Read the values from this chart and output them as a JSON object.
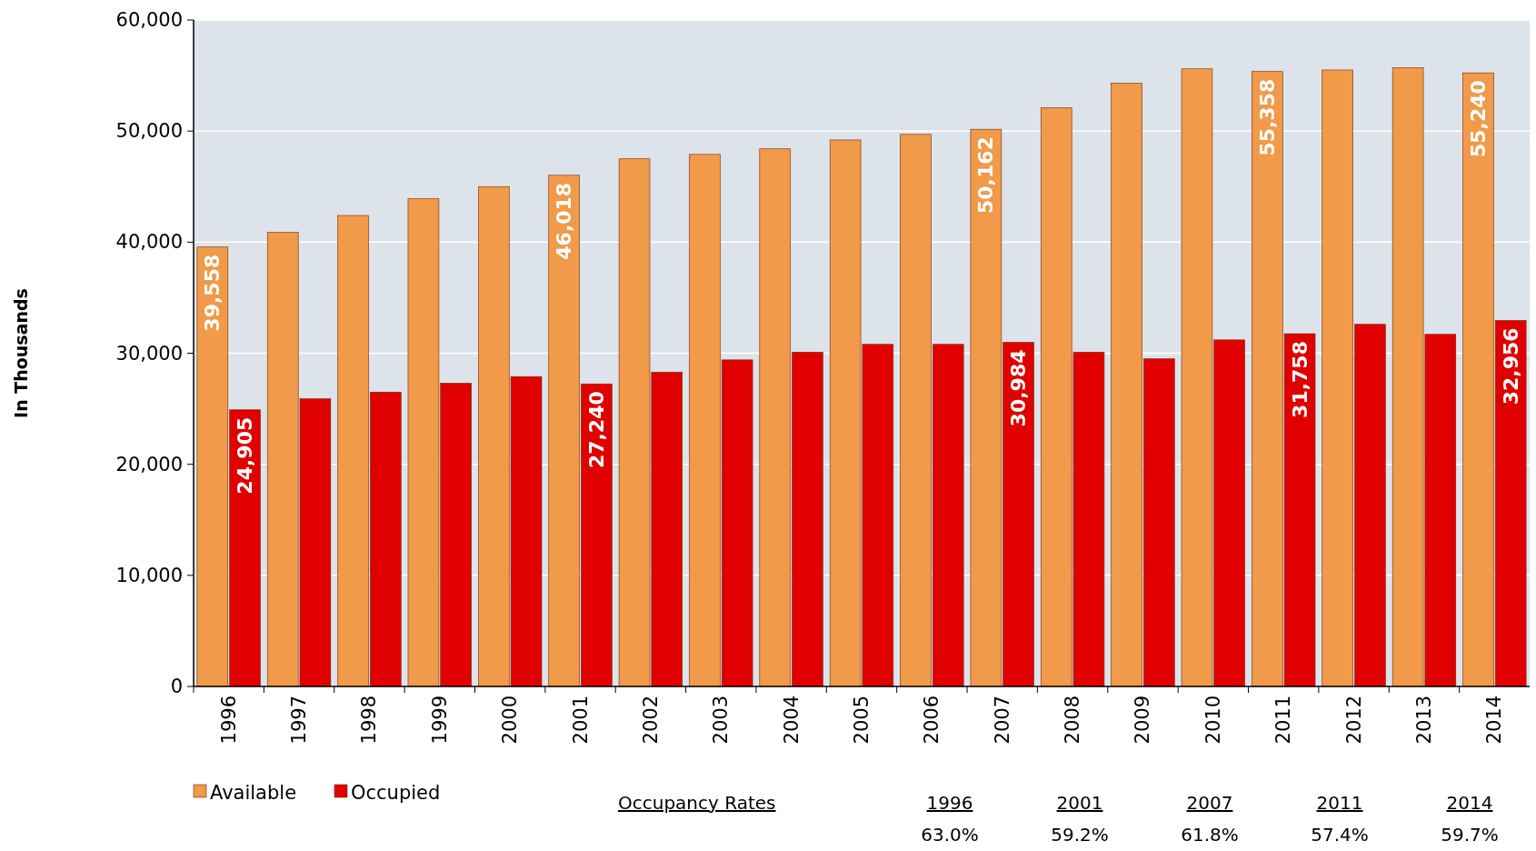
{
  "chart_data": {
    "type": "bar",
    "ylabel": "In Thousands",
    "categories": [
      "1996",
      "1997",
      "1998",
      "1999",
      "2000",
      "2001",
      "2002",
      "2003",
      "2004",
      "2005",
      "2006",
      "2007",
      "2008",
      "2009",
      "2010",
      "2011",
      "2012",
      "2013",
      "2014"
    ],
    "series": [
      {
        "name": "Available",
        "color": "#f09a4a",
        "values": [
          39558,
          40900,
          42400,
          43900,
          45000,
          46018,
          47500,
          47900,
          48400,
          49200,
          49700,
          50162,
          52100,
          54300,
          55600,
          55358,
          55500,
          55700,
          55240
        ],
        "value_labels": [
          "39,558",
          null,
          null,
          null,
          null,
          "46,018",
          null,
          null,
          null,
          null,
          null,
          "50,162",
          null,
          null,
          null,
          "55,358",
          null,
          null,
          "55,240"
        ]
      },
      {
        "name": "Occupied",
        "color": "#e00000",
        "values": [
          24905,
          25900,
          26500,
          27300,
          27900,
          27240,
          28300,
          29400,
          30100,
          30800,
          30800,
          30984,
          30100,
          29500,
          31200,
          31758,
          32600,
          31700,
          32956
        ],
        "value_labels": [
          "24,905",
          null,
          null,
          null,
          null,
          "27,240",
          null,
          null,
          null,
          null,
          null,
          "30,984",
          null,
          null,
          null,
          "31,758",
          null,
          null,
          "32,956"
        ]
      }
    ],
    "ylim": [
      0,
      60000
    ],
    "yticks": [
      {
        "value": 0,
        "label": "0"
      },
      {
        "value": 10000,
        "label": "10,000"
      },
      {
        "value": 20000,
        "label": "20,000"
      },
      {
        "value": 30000,
        "label": "30,000"
      },
      {
        "value": 40000,
        "label": "40,000"
      },
      {
        "value": 50000,
        "label": "50,000"
      },
      {
        "value": 60000,
        "label": "60,000"
      }
    ],
    "grid": "y",
    "legend": "bottom left",
    "annotations": [
      "Occupancy Rates",
      "1996",
      "63.0%",
      "2001",
      "59.2%",
      "2007",
      "61.8%",
      "2011",
      "57.4%",
      "2014",
      "59.7%"
    ]
  }
}
